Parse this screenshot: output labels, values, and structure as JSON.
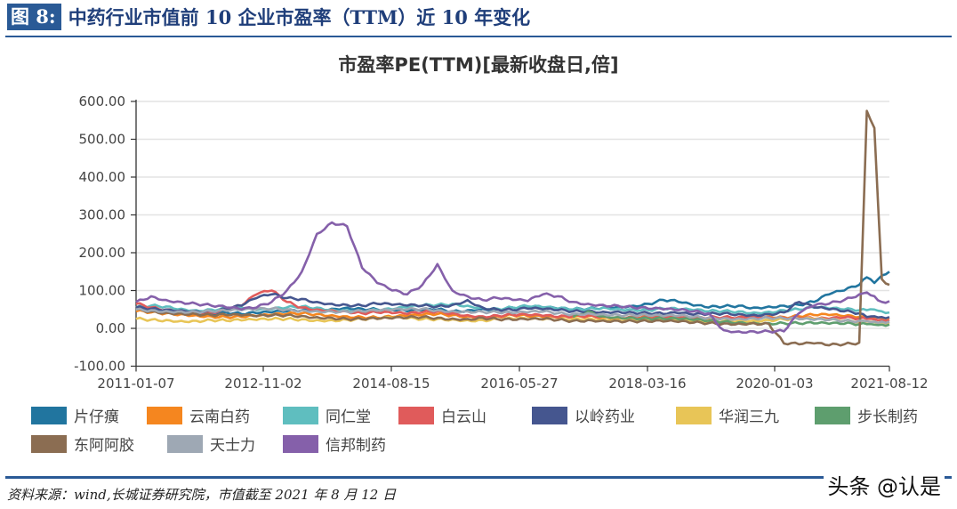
{
  "figure": {
    "label": "图 8:",
    "title": "中药行业市值前 10 企业市盈率（TTM）近 10 年变化",
    "source": "资料来源：wind,长城证券研究院，市值截至 2021 年 8 月 12 日",
    "watermark": "头条 @认是",
    "accent_color": "#2a5a96"
  },
  "chart_data": {
    "type": "line",
    "title": "市盈率PE(TTM)[最新收盘日,倍]",
    "xlabel": "",
    "ylabel": "",
    "ylim": [
      -100,
      600
    ],
    "yticks": [
      "600.00",
      "500.00",
      "400.00",
      "300.00",
      "200.00",
      "100.00",
      "0.00",
      "-100.00"
    ],
    "ytick_values": [
      600,
      500,
      400,
      300,
      200,
      100,
      0,
      -100
    ],
    "xticks": [
      "2011-01-07",
      "2012-11-02",
      "2014-08-15",
      "2016-05-27",
      "2018-03-16",
      "2020-01-03",
      "2021-08-12"
    ],
    "x_range": [
      "2011-01-07",
      "2021-08-12"
    ],
    "grid": true,
    "legend_position": "bottom",
    "x": [
      0,
      0.02,
      0.04,
      0.06,
      0.08,
      0.1,
      0.12,
      0.14,
      0.16,
      0.18,
      0.2,
      0.22,
      0.24,
      0.26,
      0.28,
      0.3,
      0.32,
      0.34,
      0.36,
      0.38,
      0.4,
      0.42,
      0.44,
      0.46,
      0.48,
      0.5,
      0.52,
      0.54,
      0.56,
      0.58,
      0.6,
      0.62,
      0.64,
      0.66,
      0.68,
      0.7,
      0.72,
      0.74,
      0.76,
      0.78,
      0.8,
      0.82,
      0.84,
      0.86,
      0.88,
      0.9,
      0.92,
      0.94,
      0.96,
      0.97,
      0.98,
      0.99,
      1.0
    ],
    "series": [
      {
        "name": "片仔癀",
        "color": "#21759f",
        "values": [
          48,
          45,
          42,
          40,
          38,
          40,
          42,
          38,
          40,
          42,
          45,
          48,
          50,
          52,
          55,
          52,
          50,
          48,
          45,
          48,
          50,
          45,
          48,
          52,
          50,
          55,
          58,
          55,
          52,
          50,
          52,
          55,
          58,
          60,
          65,
          75,
          70,
          60,
          55,
          58,
          60,
          55,
          58,
          60,
          62,
          70,
          90,
          100,
          115,
          135,
          120,
          140,
          150
        ]
      },
      {
        "name": "云南白药",
        "color": "#f5861f",
        "values": [
          45,
          42,
          40,
          38,
          35,
          32,
          30,
          30,
          32,
          35,
          38,
          40,
          38,
          35,
          32,
          30,
          28,
          30,
          32,
          35,
          38,
          35,
          32,
          30,
          32,
          35,
          32,
          30,
          28,
          30,
          32,
          30,
          28,
          30,
          32,
          30,
          28,
          25,
          26,
          28,
          30,
          30,
          32,
          30,
          32,
          35,
          35,
          32,
          30,
          28,
          30,
          28,
          28
        ]
      },
      {
        "name": "同仁堂",
        "color": "#5fbebf",
        "values": [
          55,
          60,
          58,
          52,
          48,
          50,
          52,
          55,
          48,
          50,
          55,
          58,
          55,
          50,
          48,
          45,
          48,
          50,
          55,
          60,
          62,
          65,
          60,
          55,
          52,
          55,
          58,
          55,
          52,
          50,
          52,
          55,
          52,
          50,
          48,
          52,
          50,
          48,
          45,
          46,
          45,
          42,
          44,
          48,
          50,
          55,
          52,
          50,
          48,
          48,
          50,
          45,
          42
        ]
      },
      {
        "name": "白云山",
        "color": "#e05b5b",
        "values": [
          65,
          55,
          50,
          48,
          45,
          42,
          50,
          60,
          90,
          100,
          70,
          55,
          50,
          48,
          45,
          40,
          42,
          40,
          38,
          42,
          45,
          40,
          35,
          32,
          34,
          36,
          35,
          33,
          30,
          32,
          34,
          32,
          30,
          30,
          28,
          30,
          28,
          26,
          28,
          30,
          30,
          32,
          30,
          28,
          28,
          25,
          25,
          28,
          26,
          25,
          24,
          22,
          22
        ]
      },
      {
        "name": "以岭药业",
        "color": "#45568f",
        "values": [
          55,
          52,
          50,
          48,
          46,
          45,
          50,
          60,
          80,
          90,
          80,
          78,
          70,
          65,
          62,
          60,
          65,
          62,
          60,
          60,
          58,
          62,
          75,
          55,
          50,
          48,
          52,
          50,
          48,
          45,
          46,
          44,
          45,
          42,
          40,
          38,
          40,
          36,
          38,
          40,
          38,
          36,
          38,
          42,
          70,
          55,
          50,
          45,
          40,
          30,
          32,
          30,
          30
        ]
      },
      {
        "name": "华润三九",
        "color": "#e8c557",
        "values": [
          25,
          23,
          22,
          20,
          20,
          22,
          20,
          21,
          22,
          24,
          25,
          24,
          22,
          22,
          23,
          24,
          25,
          28,
          26,
          24,
          25,
          24,
          22,
          22,
          24,
          25,
          24,
          23,
          22,
          24,
          25,
          24,
          22,
          22,
          21,
          22,
          20,
          18,
          19,
          20,
          20,
          21,
          22,
          24,
          25,
          24,
          22,
          20,
          18,
          18,
          17,
          17,
          16
        ]
      },
      {
        "name": "步长制药",
        "color": "#5e9e6e",
        "values": [
          null,
          null,
          null,
          null,
          null,
          null,
          null,
          null,
          null,
          null,
          null,
          null,
          null,
          null,
          null,
          null,
          null,
          null,
          null,
          null,
          null,
          null,
          null,
          null,
          null,
          null,
          null,
          null,
          null,
          30,
          45,
          32,
          30,
          28,
          26,
          25,
          24,
          22,
          20,
          18,
          16,
          15,
          14,
          14,
          13,
          13,
          12,
          12,
          11,
          11,
          10,
          10,
          10
        ]
      },
      {
        "name": "东阿阿胶",
        "color": "#8b6d52",
        "values": [
          50,
          45,
          42,
          40,
          38,
          35,
          35,
          34,
          32,
          34,
          35,
          33,
          30,
          28,
          25,
          24,
          25,
          26,
          28,
          30,
          28,
          26,
          25,
          28,
          24,
          22,
          23,
          24,
          22,
          20,
          22,
          21,
          20,
          19,
          18,
          18,
          17,
          15,
          14,
          13,
          13,
          14,
          12,
          -40,
          -42,
          -40,
          -45,
          -42,
          -38,
          575,
          530,
          130,
          115
        ]
      },
      {
        "name": "天士力",
        "color": "#9ea8b4",
        "values": [
          50,
          48,
          46,
          45,
          44,
          45,
          46,
          48,
          50,
          52,
          50,
          48,
          46,
          45,
          44,
          45,
          46,
          48,
          50,
          52,
          48,
          46,
          45,
          44,
          42,
          40,
          42,
          44,
          40,
          38,
          40,
          38,
          36,
          35,
          34,
          32,
          33,
          30,
          28,
          27,
          26,
          27,
          28,
          26,
          24,
          22,
          22,
          20,
          20,
          19,
          18,
          18,
          18
        ]
      },
      {
        "name": "信邦制药",
        "color": "#8560aa",
        "values": [
          70,
          85,
          75,
          70,
          65,
          60,
          55,
          50,
          55,
          70,
          100,
          150,
          250,
          280,
          270,
          160,
          120,
          100,
          90,
          115,
          170,
          100,
          85,
          75,
          80,
          75,
          72,
          90,
          85,
          70,
          65,
          62,
          60,
          55,
          52,
          50,
          48,
          45,
          40,
          -5,
          -8,
          -8,
          -8,
          -8,
          40,
          60,
          65,
          75,
          90,
          95,
          85,
          70,
          72
        ]
      }
    ]
  }
}
